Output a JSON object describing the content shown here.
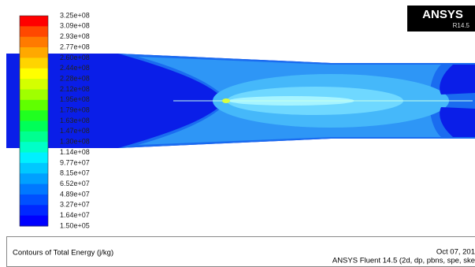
{
  "logo": {
    "title": "ANSYS",
    "version": "R14.5"
  },
  "colorbar": {
    "labels": [
      "3.25e+08",
      "3.09e+08",
      "2.93e+08",
      "2.77e+08",
      "2.60e+08",
      "2.44e+08",
      "2.28e+08",
      "2.12e+08",
      "1.95e+08",
      "1.79e+08",
      "1.63e+08",
      "1.47e+08",
      "1.30e+08",
      "1.14e+08",
      "9.77e+07",
      "8.15e+07",
      "6.52e+07",
      "4.89e+07",
      "3.27e+07",
      "1.64e+07",
      "1.50e+05"
    ]
  },
  "footer": {
    "title": "Contours of Total Energy (j/kg)",
    "date": "Oct 07, 201",
    "solver": "ANSYS Fluent 14.5 (2d, dp, pbns, spe, ske"
  }
}
